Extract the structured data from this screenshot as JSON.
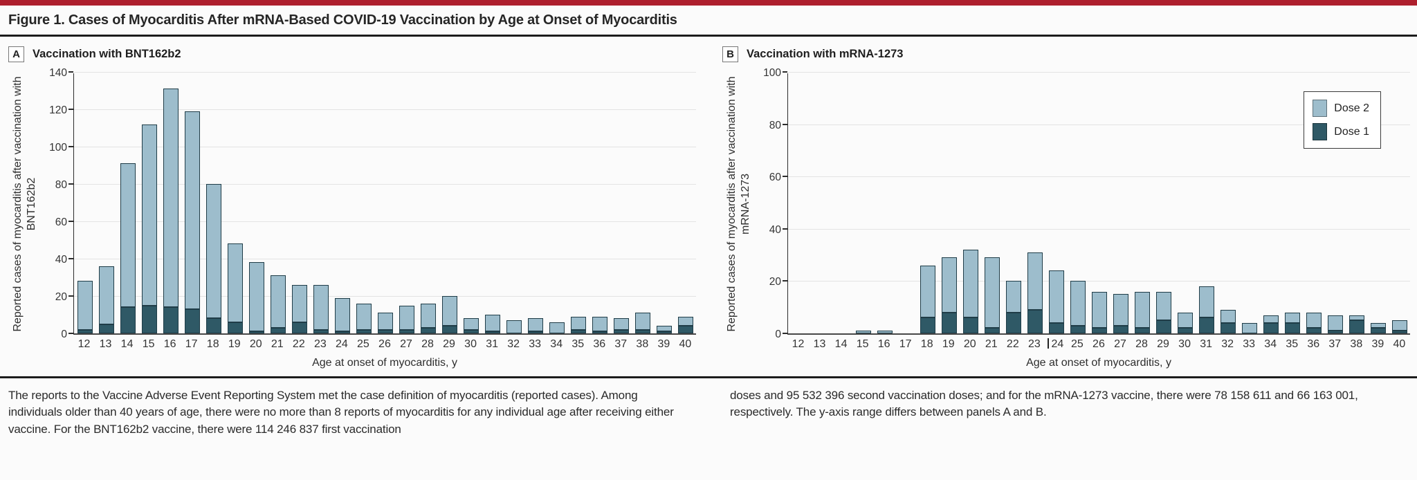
{
  "figure": {
    "title": "Figure 1. Cases of Myocarditis After mRNA-Based COVID-19 Vaccination by Age at Onset of Myocarditis"
  },
  "colors": {
    "top_bar": "#ae1f2d",
    "dose1": "#2f5966",
    "dose2": "#9dbdcc",
    "bar_border": "#1f3c47",
    "grid": "#e3e3e3",
    "axis": "#2b2b2b",
    "rule": "#1c1c1c"
  },
  "legend": {
    "position": "top-right-of-panel-B",
    "items": [
      {
        "label": "Dose 2",
        "color_key": "dose2"
      },
      {
        "label": "Dose 1",
        "color_key": "dose1"
      }
    ]
  },
  "caption": {
    "left": "The reports to the Vaccine Adverse Event Reporting System met the case definition of myocarditis (reported cases). Among individuals older than 40 years of age, there were no more than 8 reports of myocarditis for any individual age after receiving either vaccine. For the BNT162b2 vaccine, there were 114 246 837 first vaccination",
    "right": "doses and 95 532 396 second vaccination doses; and for the mRNA-1273 vaccine, there were 78 158 611 and 66 163 001, respectively. The y-axis range differs between panels A and B."
  },
  "chart_data": [
    {
      "type": "bar",
      "stacked": true,
      "panel_letter": "A",
      "panel_title": "Vaccination with BNT162b2",
      "xlabel": "Age at onset of myocarditis, y",
      "ylabel": "Reported cases of myocarditis after vaccination with BNT162b2",
      "ylim": [
        0,
        140
      ],
      "ytick_interval": 20,
      "grid": true,
      "categories": [
        12,
        13,
        14,
        15,
        16,
        17,
        18,
        19,
        20,
        21,
        22,
        23,
        24,
        25,
        26,
        27,
        28,
        29,
        30,
        31,
        32,
        33,
        34,
        35,
        36,
        37,
        38,
        39,
        40
      ],
      "series": [
        {
          "name": "Dose 1",
          "values": [
            2,
            5,
            14,
            15,
            14,
            13,
            8,
            6,
            1,
            3,
            6,
            2,
            1,
            2,
            2,
            2,
            3,
            4,
            2,
            1,
            0,
            1,
            0,
            2,
            1,
            2,
            2,
            1,
            4
          ]
        },
        {
          "name": "Dose 2",
          "values": [
            26,
            31,
            77,
            97,
            117,
            106,
            72,
            42,
            37,
            28,
            20,
            24,
            18,
            14,
            9,
            13,
            13,
            16,
            6,
            9,
            7,
            7,
            6,
            7,
            8,
            6,
            9,
            3,
            5
          ]
        }
      ],
      "totals": [
        28,
        36,
        91,
        112,
        131,
        119,
        80,
        48,
        38,
        31,
        26,
        26,
        19,
        16,
        11,
        15,
        16,
        20,
        8,
        10,
        7,
        8,
        6,
        9,
        9,
        8,
        11,
        4,
        9
      ]
    },
    {
      "type": "bar",
      "stacked": true,
      "panel_letter": "B",
      "panel_title": "Vaccination with mRNA-1273",
      "xlabel": "Age at onset of myocarditis, y",
      "ylabel": "Reported cases of myocarditis after vaccination with mRNA-1273",
      "ylim": [
        0,
        100
      ],
      "ytick_interval": 20,
      "grid": true,
      "legend": true,
      "caret_artifact_before_label": 24,
      "categories": [
        12,
        13,
        14,
        15,
        16,
        17,
        18,
        19,
        20,
        21,
        22,
        23,
        24,
        25,
        26,
        27,
        28,
        29,
        30,
        31,
        32,
        33,
        34,
        35,
        36,
        37,
        38,
        39,
        40
      ],
      "series": [
        {
          "name": "Dose 1",
          "values": [
            0,
            0,
            0,
            0,
            0,
            0,
            6,
            8,
            6,
            2,
            8,
            9,
            4,
            3,
            2,
            3,
            2,
            5,
            2,
            6,
            4,
            0,
            4,
            4,
            2,
            1,
            5,
            2,
            1
          ]
        },
        {
          "name": "Dose 2",
          "values": [
            0,
            0,
            0,
            1,
            1,
            0,
            20,
            21,
            26,
            27,
            12,
            22,
            20,
            17,
            14,
            12,
            14,
            11,
            6,
            12,
            5,
            4,
            3,
            4,
            6,
            6,
            2,
            2,
            4
          ]
        }
      ],
      "totals": [
        0,
        0,
        0,
        1,
        1,
        0,
        26,
        29,
        32,
        29,
        20,
        31,
        24,
        20,
        16,
        15,
        16,
        16,
        8,
        18,
        9,
        4,
        7,
        8,
        8,
        7,
        7,
        4,
        5
      ]
    }
  ]
}
